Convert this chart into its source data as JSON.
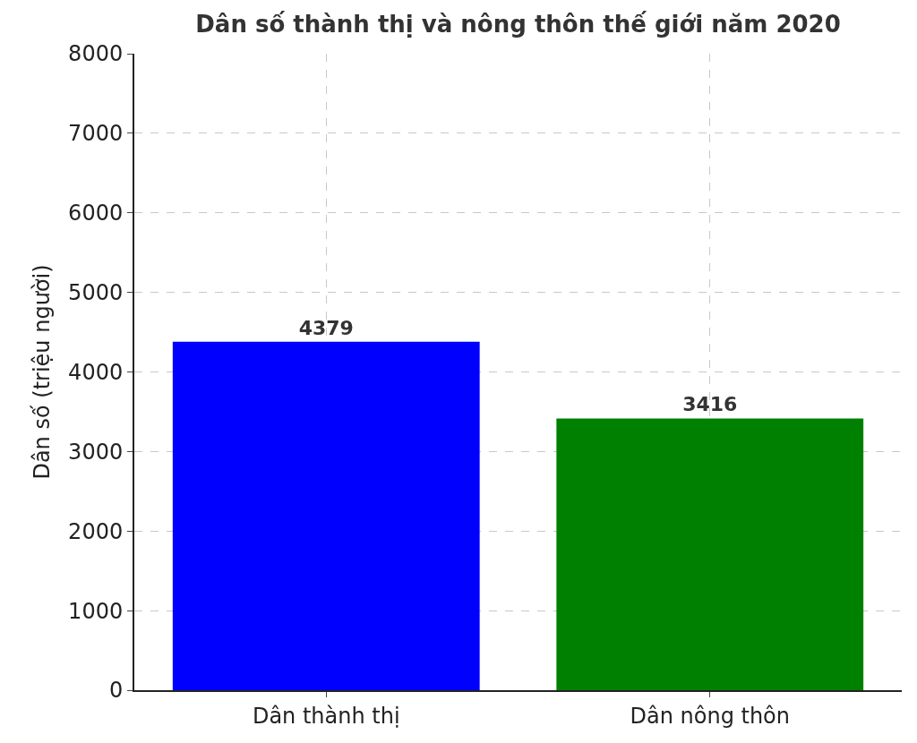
{
  "chart_data": {
    "type": "bar",
    "title": "Dân số thành thị và nông thôn thế giới năm 2020",
    "ylabel": "Dân số (triệu người)",
    "categories": [
      "Dân thành thị",
      "Dân nông thôn"
    ],
    "values": [
      4379,
      3416
    ],
    "colors": [
      "#0000ff",
      "#008000"
    ],
    "ylim": [
      0,
      8000
    ],
    "yticks": [
      0,
      1000,
      2000,
      3000,
      4000,
      5000,
      6000,
      7000,
      8000
    ],
    "grid": true,
    "data_labels": true
  }
}
